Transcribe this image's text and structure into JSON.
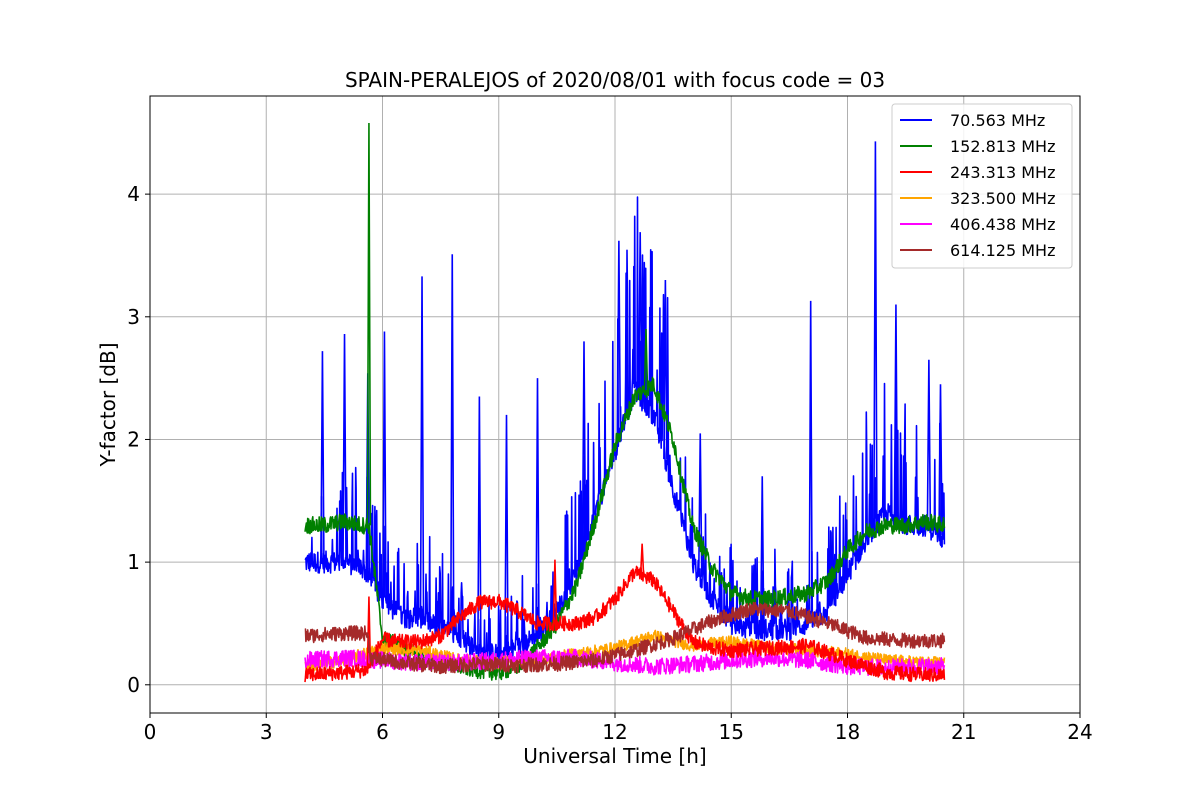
{
  "chart_data": {
    "type": "line",
    "title": "SPAIN-PERALEJOS of 2020/08/01 with focus code = 03",
    "xlabel": "Universal Time [h]",
    "ylabel": "Y-factor [dB]",
    "xlim": [
      0,
      24
    ],
    "ylim": [
      -0.23,
      4.8
    ],
    "xticks": [
      0,
      3,
      6,
      9,
      12,
      15,
      18,
      21,
      24
    ],
    "yticks": [
      0,
      1,
      2,
      3,
      4
    ],
    "grid": true,
    "legend_position": "top-right",
    "series": [
      {
        "name": " 70.563 MHz",
        "color": "#0000ff",
        "x": [
          4.0,
          4.5,
          5.0,
          5.5,
          6.0,
          6.5,
          7.0,
          7.5,
          8.0,
          8.5,
          9.0,
          9.5,
          10.0,
          10.5,
          11.0,
          11.5,
          12.0,
          12.5,
          13.0,
          13.5,
          14.0,
          14.5,
          15.0,
          15.5,
          16.0,
          16.5,
          17.0,
          17.5,
          18.0,
          18.5,
          19.0,
          19.5,
          20.0,
          20.5
        ],
        "values": [
          1.0,
          1.0,
          1.0,
          0.95,
          0.7,
          0.55,
          0.55,
          0.45,
          0.4,
          0.25,
          0.25,
          0.3,
          0.4,
          0.6,
          0.9,
          1.4,
          1.9,
          2.4,
          2.2,
          1.6,
          1.0,
          0.7,
          0.5,
          0.45,
          0.45,
          0.45,
          0.5,
          0.6,
          0.9,
          1.2,
          1.4,
          1.3,
          1.3,
          1.2
        ],
        "peaks": [
          {
            "x": 4.45,
            "y": 2.72
          },
          {
            "x": 5.02,
            "y": 2.86
          },
          {
            "x": 5.62,
            "y": 2.54
          },
          {
            "x": 6.05,
            "y": 2.88
          },
          {
            "x": 7.02,
            "y": 3.33
          },
          {
            "x": 7.8,
            "y": 3.51
          },
          {
            "x": 8.5,
            "y": 2.35
          },
          {
            "x": 9.2,
            "y": 2.2
          },
          {
            "x": 10.0,
            "y": 2.5
          },
          {
            "x": 11.2,
            "y": 2.8
          },
          {
            "x": 12.1,
            "y": 3.62
          },
          {
            "x": 12.65,
            "y": 3.69
          },
          {
            "x": 13.3,
            "y": 3.3
          },
          {
            "x": 14.2,
            "y": 2.05
          },
          {
            "x": 15.8,
            "y": 1.7
          },
          {
            "x": 17.05,
            "y": 3.13
          },
          {
            "x": 18.72,
            "y": 4.43
          },
          {
            "x": 19.25,
            "y": 3.1
          },
          {
            "x": 20.1,
            "y": 2.65
          },
          {
            "x": 20.4,
            "y": 2.45
          }
        ]
      },
      {
        "name": "152.813 MHz",
        "color": "#008000",
        "x": [
          4.0,
          4.5,
          5.0,
          5.5,
          5.65,
          6.0,
          6.5,
          7.0,
          7.5,
          8.0,
          8.5,
          9.0,
          9.5,
          10.0,
          10.5,
          11.0,
          11.5,
          12.0,
          12.5,
          13.0,
          13.5,
          14.0,
          14.5,
          15.0,
          15.5,
          16.0,
          16.5,
          17.0,
          17.5,
          18.0,
          18.5,
          19.0,
          19.5,
          20.0,
          20.5
        ],
        "values": [
          1.3,
          1.3,
          1.33,
          1.3,
          1.3,
          0.38,
          0.3,
          0.22,
          0.18,
          0.15,
          0.12,
          0.1,
          0.15,
          0.3,
          0.5,
          0.8,
          1.35,
          1.95,
          2.35,
          2.45,
          2.0,
          1.3,
          0.95,
          0.75,
          0.7,
          0.7,
          0.72,
          0.75,
          0.85,
          1.1,
          1.25,
          1.3,
          1.3,
          1.33,
          1.3
        ],
        "peaks": [
          {
            "x": 5.65,
            "y": 4.58
          },
          {
            "x": 12.8,
            "y": 2.9
          }
        ]
      },
      {
        "name": "243.313 MHz",
        "color": "#ff0000",
        "x": [
          4.0,
          5.0,
          5.6,
          6.0,
          6.5,
          7.0,
          7.5,
          8.0,
          8.5,
          9.0,
          9.5,
          10.0,
          10.5,
          11.0,
          11.5,
          12.0,
          12.5,
          13.0,
          13.5,
          14.0,
          14.5,
          15.0,
          16.0,
          17.0,
          18.0,
          19.0,
          20.0,
          20.5
        ],
        "values": [
          0.08,
          0.1,
          0.12,
          0.37,
          0.35,
          0.35,
          0.4,
          0.55,
          0.67,
          0.68,
          0.6,
          0.5,
          0.5,
          0.5,
          0.55,
          0.7,
          0.92,
          0.85,
          0.6,
          0.35,
          0.3,
          0.28,
          0.3,
          0.32,
          0.2,
          0.1,
          0.08,
          0.08
        ],
        "peaks": [
          {
            "x": 5.65,
            "y": 0.72
          },
          {
            "x": 10.45,
            "y": 1.02
          },
          {
            "x": 12.7,
            "y": 1.15
          }
        ]
      },
      {
        "name": "323.500 MHz",
        "color": "#ffa500",
        "x": [
          4.0,
          5.0,
          6.0,
          7.0,
          8.0,
          9.0,
          10.0,
          11.0,
          12.0,
          13.0,
          14.0,
          15.0,
          16.0,
          17.0,
          18.0,
          19.0,
          20.0,
          20.5
        ],
        "values": [
          0.15,
          0.2,
          0.3,
          0.28,
          0.2,
          0.18,
          0.2,
          0.25,
          0.3,
          0.4,
          0.32,
          0.35,
          0.3,
          0.28,
          0.25,
          0.2,
          0.18,
          0.18
        ],
        "peaks": []
      },
      {
        "name": "406.438 MHz",
        "color": "#ff00ff",
        "x": [
          4.0,
          5.0,
          6.0,
          7.0,
          8.0,
          9.0,
          10.0,
          11.0,
          12.0,
          13.0,
          14.0,
          15.0,
          16.0,
          17.0,
          18.0,
          19.0,
          20.0,
          20.5
        ],
        "values": [
          0.2,
          0.22,
          0.2,
          0.18,
          0.18,
          0.2,
          0.22,
          0.22,
          0.18,
          0.15,
          0.17,
          0.2,
          0.22,
          0.2,
          0.15,
          0.14,
          0.15,
          0.15
        ],
        "peaks": []
      },
      {
        "name": "614.125 MHz",
        "color": "#a52a2a",
        "x": [
          4.0,
          5.0,
          5.6,
          5.7,
          6.5,
          7.5,
          8.5,
          9.5,
          10.5,
          11.5,
          12.5,
          13.5,
          14.5,
          15.5,
          16.5,
          17.5,
          18.5,
          19.5,
          20.5
        ],
        "values": [
          0.4,
          0.42,
          0.42,
          0.22,
          0.18,
          0.15,
          0.17,
          0.16,
          0.17,
          0.2,
          0.28,
          0.38,
          0.52,
          0.62,
          0.6,
          0.5,
          0.38,
          0.36,
          0.36
        ],
        "peaks": []
      }
    ]
  }
}
